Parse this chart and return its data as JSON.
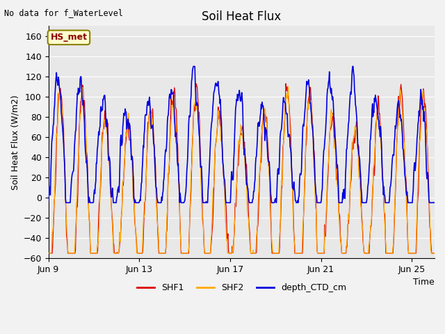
{
  "title": "Soil Heat Flux",
  "ylabel": "Soil Heat Flux (W/m2)",
  "xlabel": "Time",
  "top_left_text": "No data for f_WaterLevel",
  "annotation_box": "HS_met",
  "ylim": [
    -60,
    170
  ],
  "xtick_labels": [
    "Jun 9",
    "Jun 13",
    "Jun 17",
    "Jun 21",
    "Jun 25"
  ],
  "xtick_positions": [
    0,
    4,
    8,
    12,
    16
  ],
  "xlim": [
    0,
    17
  ],
  "colors": {
    "SHF1": "#dd0000",
    "SHF2": "#ffaa00",
    "depth_CTD_cm": "#0000dd",
    "background": "#e8e8e8",
    "grid": "#ffffff",
    "fig_bg": "#f2f2f2"
  },
  "n_days": 17,
  "points_per_day": 48,
  "seed": 42,
  "figsize": [
    6.4,
    4.8
  ],
  "dpi": 100
}
